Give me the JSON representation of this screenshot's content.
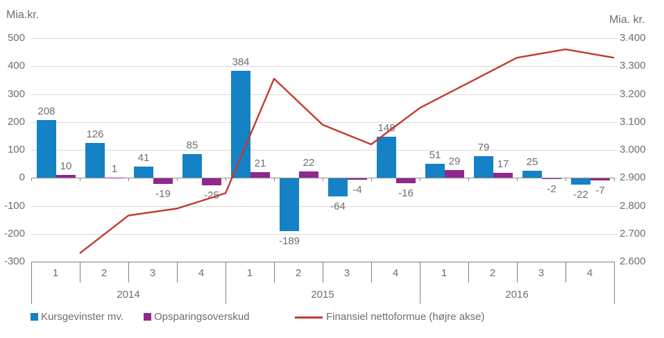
{
  "chart_data": {
    "type": "combo-bar-line",
    "quarter_labels": [
      "1",
      "2",
      "3",
      "4",
      "1",
      "2",
      "3",
      "4",
      "1",
      "2",
      "3",
      "4"
    ],
    "year_labels": [
      "2014",
      "2015",
      "2016"
    ],
    "left_axis": {
      "title": "Mia.kr.",
      "ticks": [
        "500",
        "400",
        "300",
        "200",
        "100",
        "0",
        "-100",
        "-200",
        "-300"
      ],
      "max": 500,
      "min": -300,
      "gridlines": true
    },
    "right_axis": {
      "title": "Mia. kr.",
      "ticks": [
        "3.400",
        "3.300",
        "3.200",
        "3.100",
        "3.000",
        "2.900",
        "2.800",
        "2.700",
        "2.600"
      ],
      "max": 3400,
      "min": 2600
    },
    "series": [
      {
        "id": "kursgevinster-mv",
        "name": "Kursgevinster mv.",
        "type": "bar",
        "axis": "left",
        "color": "#1482c4",
        "values": [
          208,
          126,
          41,
          85,
          384,
          -189,
          -64,
          148,
          51,
          79,
          25,
          -22
        ]
      },
      {
        "id": "opsparingsoverskud",
        "name": "Opsparingsoverskud",
        "type": "bar",
        "axis": "left",
        "color": "#92278e",
        "values": [
          10,
          1,
          -19,
          -25,
          21,
          22,
          -4,
          -16,
          29,
          17,
          -2,
          -7
        ]
      },
      {
        "id": "finansiel-nettoformue",
        "name": "Finansiel nettoformue (højre akse)",
        "type": "line",
        "axis": "right",
        "color": "#c3392e",
        "values": [
          2630,
          2765,
          2790,
          2845,
          3255,
          3090,
          3020,
          3150,
          3240,
          3330,
          3360,
          3330
        ]
      }
    ],
    "colors": {
      "gridline": "#d9d9d9",
      "zero_axis": "#8c8c8c",
      "category_axis": "#7f7f7f",
      "text": "#6e6e6e"
    }
  }
}
